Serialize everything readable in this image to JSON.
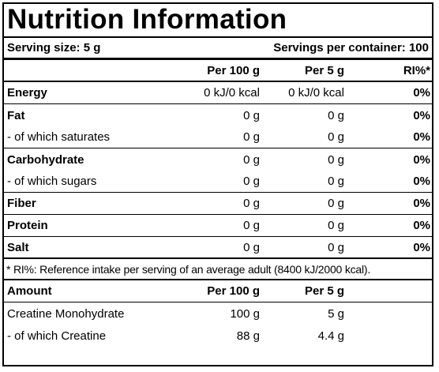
{
  "title": "Nutrition Information",
  "serving": {
    "size": "Serving size: 5 g",
    "per_container": "Servings per container: 100"
  },
  "header": {
    "blank": "",
    "per100": "Per 100 g",
    "per5": "Per 5 g",
    "ri": "RI%*"
  },
  "nutrients": [
    {
      "name": "Energy",
      "per100": "0 kJ/0 kcal",
      "per5": "0 kJ/0 kcal",
      "ri": "0%"
    },
    {
      "name": "Fat",
      "per100": "0 g",
      "per5": "0 g",
      "ri": "0%"
    },
    {
      "name": "- of which saturates",
      "per100": "0 g",
      "per5": "0 g",
      "ri": "0%"
    },
    {
      "name": "Carbohydrate",
      "per100": "0 g",
      "per5": "0 g",
      "ri": "0%"
    },
    {
      "name": "- of which sugars",
      "per100": "0 g",
      "per5": "0 g",
      "ri": "0%"
    },
    {
      "name": "Fiber",
      "per100": "0 g",
      "per5": "0 g",
      "ri": "0%"
    },
    {
      "name": "Protein",
      "per100": "0 g",
      "per5": "0 g",
      "ri": "0%"
    },
    {
      "name": "Salt",
      "per100": "0 g",
      "per5": "0 g",
      "ri": "0%"
    }
  ],
  "footnote": "* RI%: Reference intake per serving of an average adult (8400 kJ/2000 kcal).",
  "amount_header": {
    "label": "Amount",
    "per100": "Per 100 g",
    "per5": "Per 5 g"
  },
  "amounts": [
    {
      "name": "Creatine Monohydrate",
      "per100": "100 g",
      "per5": "5 g"
    },
    {
      "name": "- of which Creatine",
      "per100": "88 g",
      "per5": "4.4 g"
    }
  ]
}
